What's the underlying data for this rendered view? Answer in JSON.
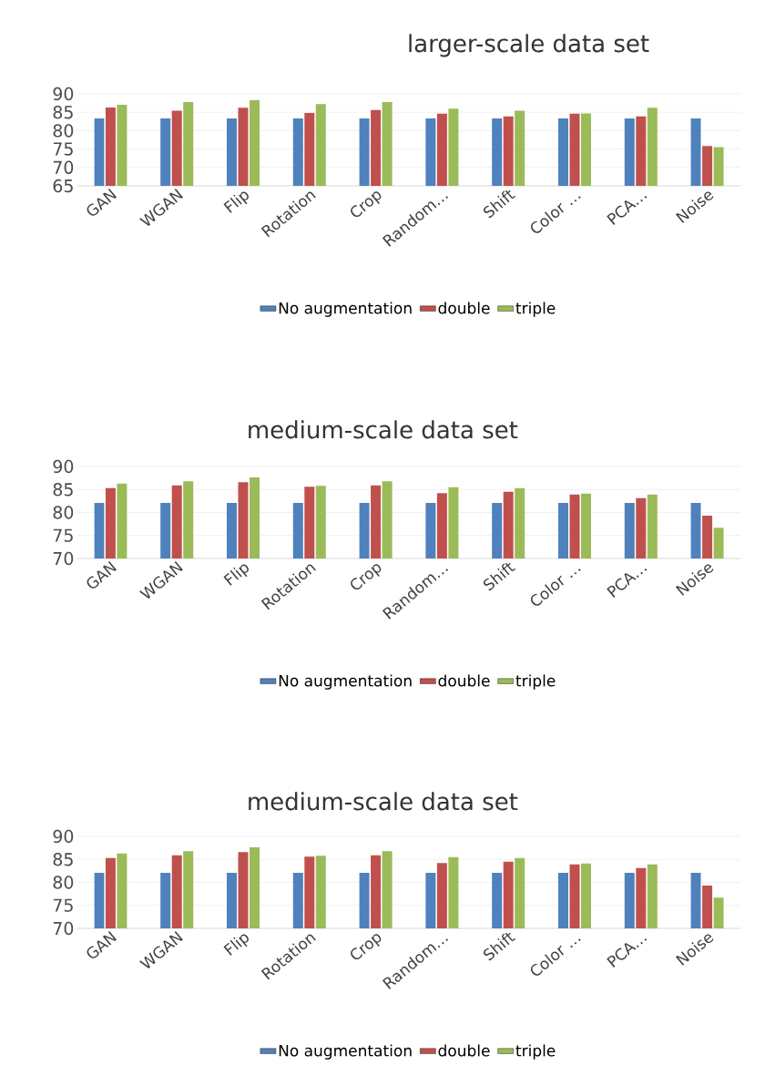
{
  "chart_data": [
    {
      "type": "bar",
      "title": "larger-scale data set",
      "categories": [
        "GAN",
        "WGAN",
        "Flip",
        "Rotation",
        "Crop",
        "Random…",
        "Shift",
        "Color …",
        "PCA…",
        "Noise"
      ],
      "ylim": [
        65,
        90
      ],
      "yticks": [
        65,
        70,
        75,
        80,
        85,
        90
      ],
      "grid": "y",
      "legend": "bottom",
      "series": [
        {
          "name": "No augmentation",
          "color": "#4f81bd",
          "values": [
            83.3,
            83.3,
            83.3,
            83.3,
            83.3,
            83.3,
            83.3,
            83.3,
            83.3,
            83.3
          ]
        },
        {
          "name": "double",
          "color": "#c0504d",
          "values": [
            86.3,
            85.4,
            86.2,
            84.8,
            85.6,
            84.6,
            83.9,
            84.6,
            83.9,
            75.8
          ]
        },
        {
          "name": "triple",
          "color": "#9bbb59",
          "values": [
            87.0,
            87.8,
            88.3,
            87.2,
            87.8,
            86.0,
            85.4,
            84.7,
            86.2,
            75.5
          ]
        }
      ]
    },
    {
      "type": "bar",
      "title": "medium-scale data set",
      "categories": [
        "GAN",
        "WGAN",
        "Flip",
        "Rotation",
        "Crop",
        "Random…",
        "Shift",
        "Color …",
        "PCA…",
        "Noise"
      ],
      "ylim": [
        70,
        90
      ],
      "yticks": [
        70,
        75,
        80,
        85,
        90
      ],
      "grid": "y",
      "legend": "bottom",
      "series": [
        {
          "name": "No augmentation",
          "color": "#4f81bd",
          "values": [
            82.1,
            82.1,
            82.1,
            82.1,
            82.1,
            82.1,
            82.1,
            82.1,
            82.1,
            82.1
          ]
        },
        {
          "name": "double",
          "color": "#c0504d",
          "values": [
            85.3,
            85.9,
            86.6,
            85.6,
            85.9,
            84.2,
            84.5,
            83.9,
            83.1,
            79.3
          ]
        },
        {
          "name": "triple",
          "color": "#9bbb59",
          "values": [
            86.3,
            86.8,
            87.6,
            85.8,
            86.8,
            85.5,
            85.3,
            84.1,
            83.9,
            76.7
          ]
        }
      ]
    },
    {
      "type": "bar",
      "title": "medium-scale data set",
      "categories": [
        "GAN",
        "WGAN",
        "Flip",
        "Rotation",
        "Crop",
        "Random…",
        "Shift",
        "Color …",
        "PCA…",
        "Noise"
      ],
      "ylim": [
        70,
        90
      ],
      "yticks": [
        70,
        75,
        80,
        85,
        90
      ],
      "grid": "y",
      "legend": "bottom",
      "series": [
        {
          "name": "No augmentation",
          "color": "#4f81bd",
          "values": [
            82.1,
            82.1,
            82.1,
            82.1,
            82.1,
            82.1,
            82.1,
            82.1,
            82.1,
            82.1
          ]
        },
        {
          "name": "double",
          "color": "#c0504d",
          "values": [
            85.3,
            85.9,
            86.6,
            85.6,
            85.9,
            84.2,
            84.5,
            83.9,
            83.1,
            79.3
          ]
        },
        {
          "name": "triple",
          "color": "#9bbb59",
          "values": [
            86.3,
            86.8,
            87.6,
            85.8,
            86.8,
            85.5,
            85.3,
            84.1,
            83.9,
            76.7
          ]
        }
      ]
    }
  ]
}
